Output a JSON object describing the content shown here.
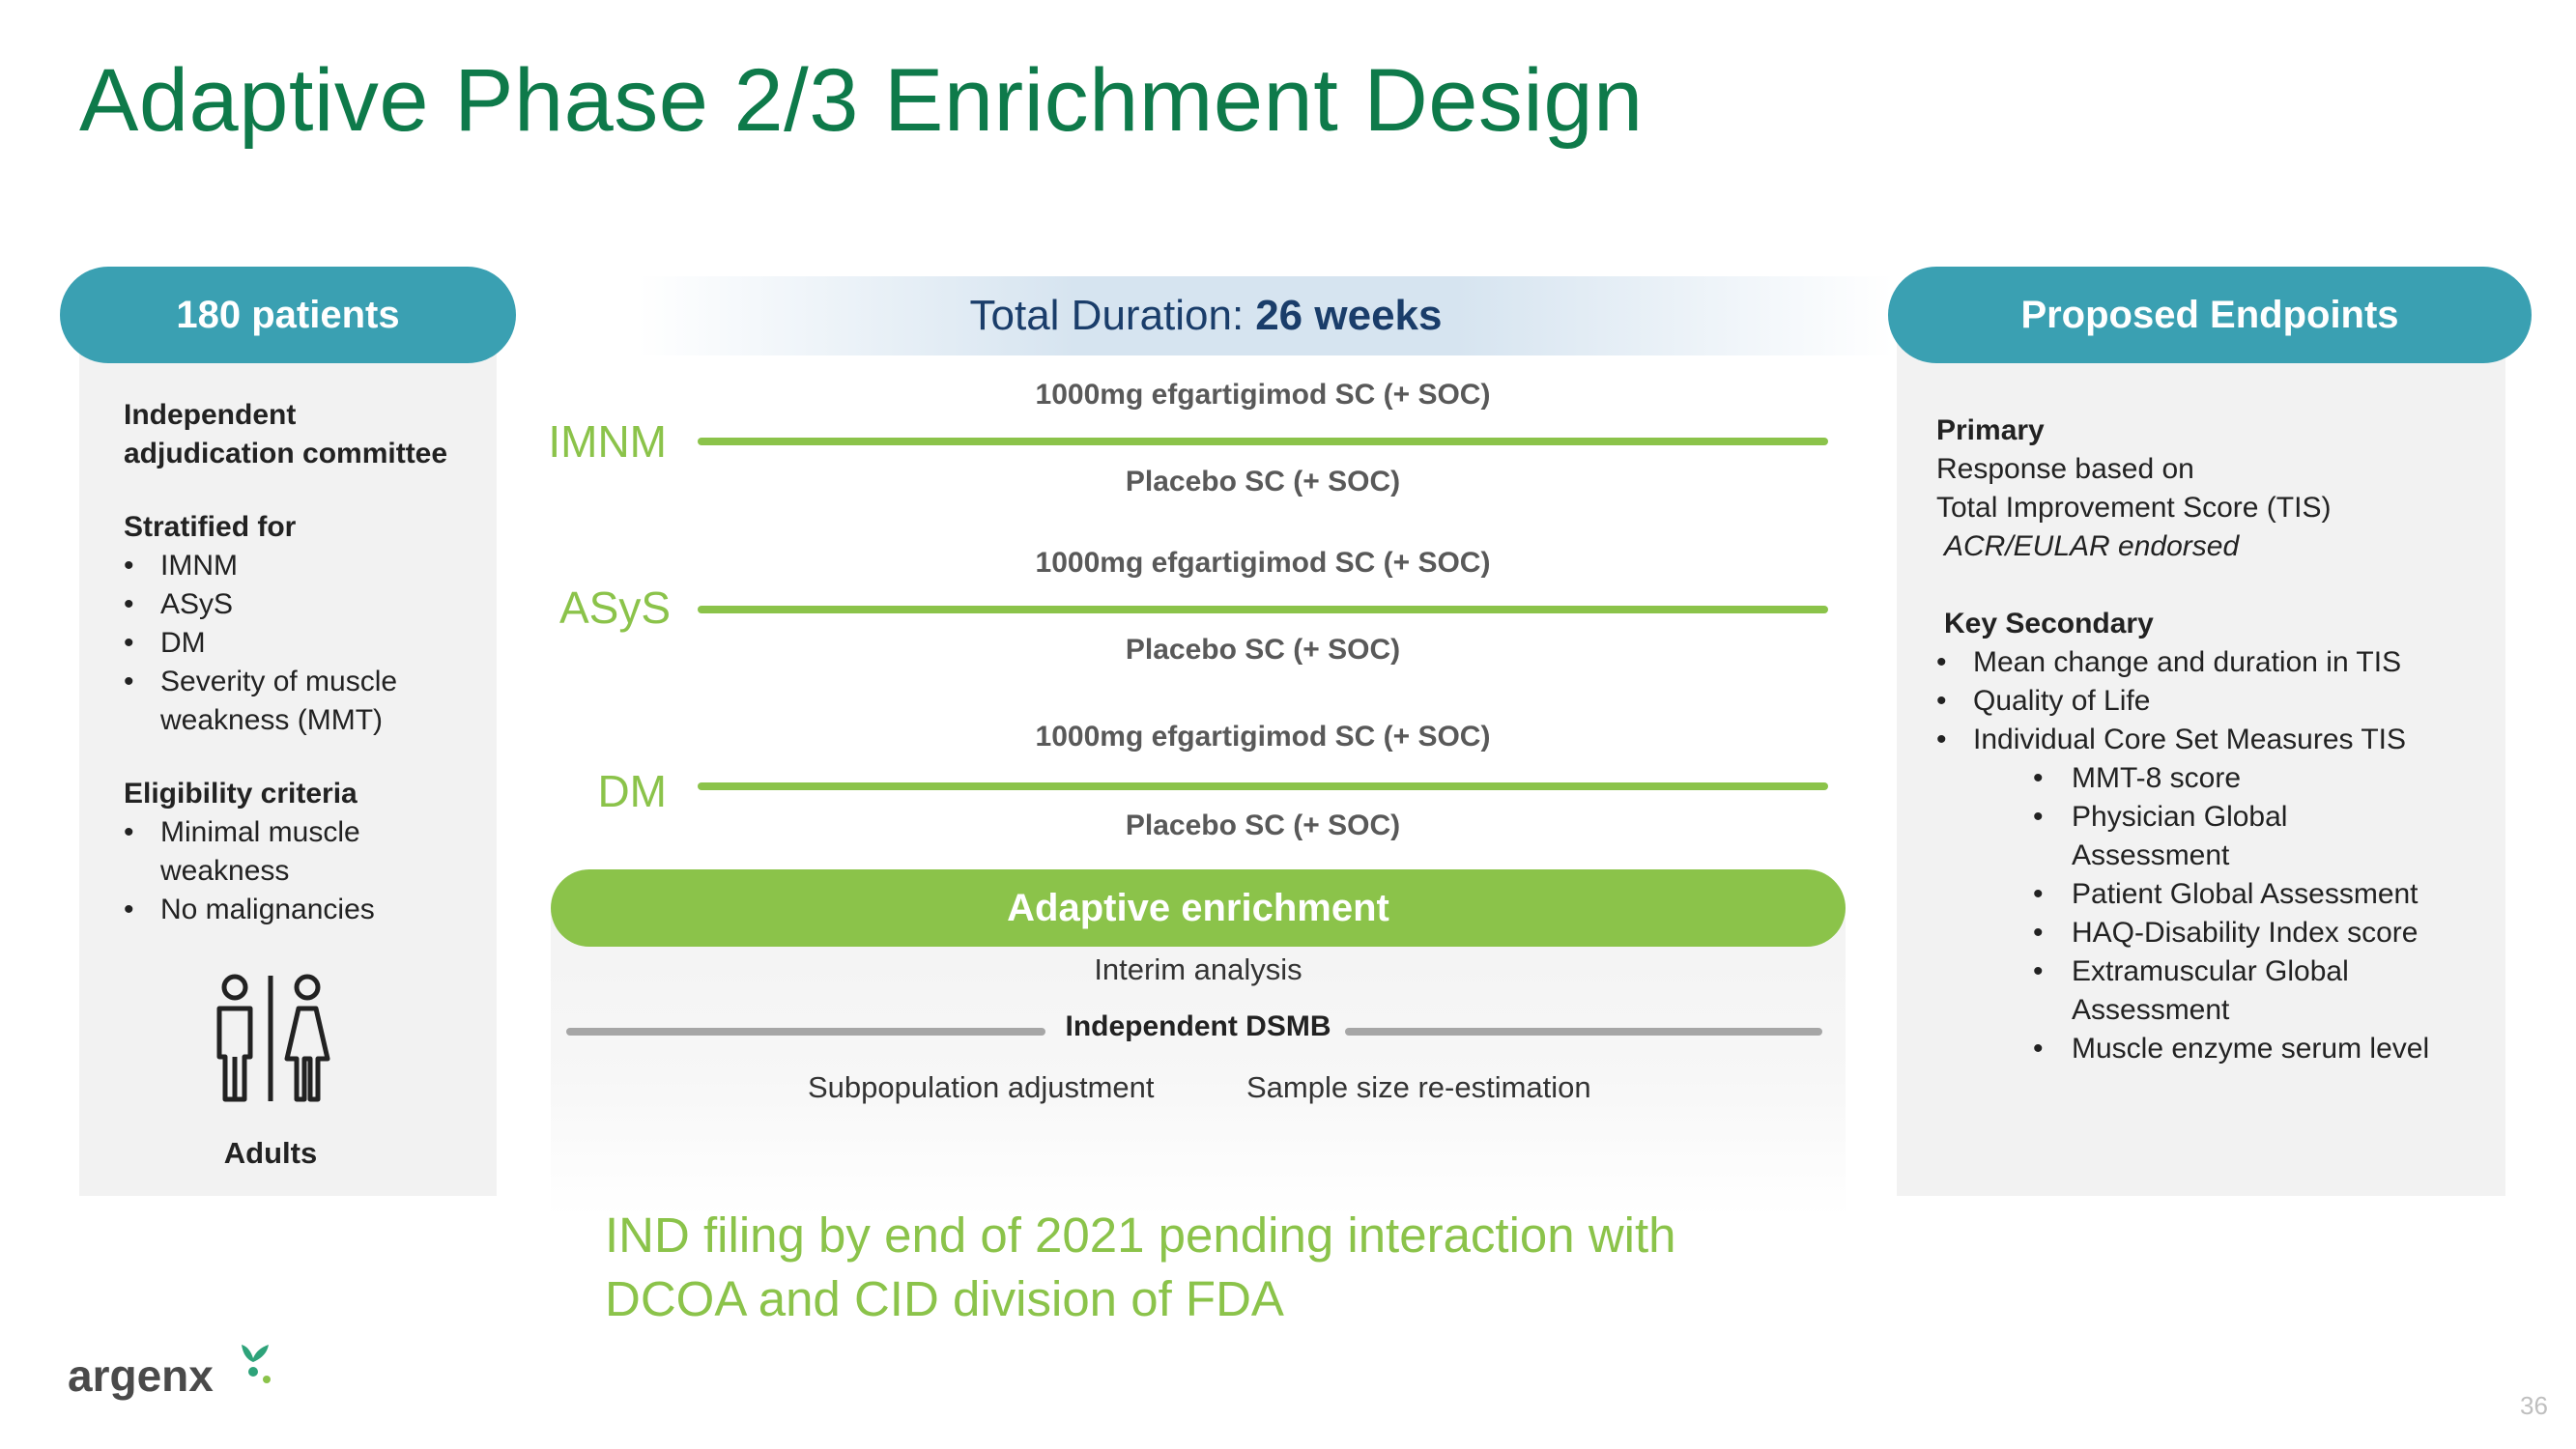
{
  "title": "Adaptive Phase 2/3 Enrichment Design",
  "left_panel": {
    "pill": "180 patients",
    "committee_line1": "Independent",
    "committee_line2": "adjudication committee",
    "stratified_head": "Stratified for",
    "stratified_items": [
      "IMNM",
      "ASyS",
      "DM",
      "Severity of muscle",
      "weakness (MMT)"
    ],
    "eligibility_head": "Eligibility criteria",
    "eligibility_items": [
      "Minimal muscle",
      "weakness",
      "No malignancies"
    ],
    "adults_label": "Adults"
  },
  "duration": {
    "prefix": "Total Duration:",
    "value": "26 weeks"
  },
  "arms": [
    {
      "group": "IMNM",
      "top": "1000mg efgartigimod SC (+ SOC)",
      "bottom": "Placebo SC (+ SOC)"
    },
    {
      "group": "ASyS",
      "top": "1000mg efgartigimod SC (+ SOC)",
      "bottom": "Placebo SC (+ SOC)"
    },
    {
      "group": "DM",
      "top": "1000mg efgartigimod SC (+ SOC)",
      "bottom": "Placebo SC (+ SOC)"
    }
  ],
  "adaptive": {
    "pill": "Adaptive enrichment",
    "interim": "Interim analysis",
    "dsmb": "Independent DSMB",
    "subpop": "Subpopulation adjustment",
    "samplesize": "Sample size re-estimation"
  },
  "ind_note": {
    "line1": "IND filing by end of 2021 pending interaction with",
    "line2": "DCOA and CID division of FDA"
  },
  "right_panel": {
    "pill": "Proposed Endpoints",
    "primary_head": "Primary",
    "primary_line1": "Response based on",
    "primary_line2": "Total Improvement Score (TIS)",
    "primary_line3": "ACR/EULAR endorsed",
    "secondary_head": "Key Secondary",
    "secondary_items": [
      "Mean change and duration in TIS",
      "Quality of Life",
      "Individual Core Set Measures TIS"
    ],
    "sub_items": [
      "MMT-8 score",
      "Physician Global",
      "Assessment",
      "Patient Global Assessment",
      "HAQ-Disability Index score",
      "Extramuscular Global",
      "Assessment",
      "Muscle enzyme serum level"
    ]
  },
  "logo_text": "argenx",
  "page_number": "36",
  "colors": {
    "title_green": "#0e7a4a",
    "teal": "#3aa0b2",
    "light_green": "#8bc34a",
    "navy": "#1a3d6a",
    "panel_gray": "#f2f2f2"
  }
}
